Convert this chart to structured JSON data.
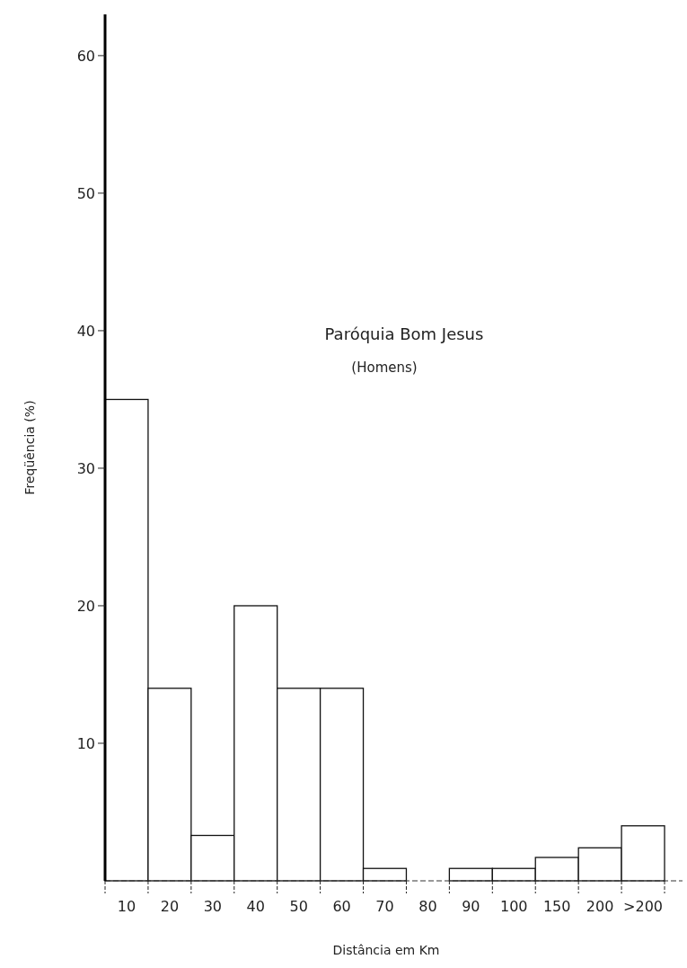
{
  "chart_data": {
    "type": "bar",
    "title": "Paróquia Bom Jesus",
    "subtitle": "(Homens)",
    "xlabel": "Distância em Km",
    "ylabel": "Freqüência (%)",
    "categories": [
      "10",
      "20",
      "30",
      "40",
      "50",
      "60",
      "70",
      "80",
      "90",
      "100",
      "150",
      "200",
      ">200"
    ],
    "values": [
      35,
      14,
      3.3,
      20,
      14,
      14,
      0.9,
      0,
      0.9,
      0.9,
      1.7,
      2.4,
      4.0
    ],
    "color": "#ffffff",
    "ylim": [
      0,
      63
    ],
    "yticks": [
      10,
      20,
      30,
      40,
      50,
      60
    ],
    "grid": false
  }
}
